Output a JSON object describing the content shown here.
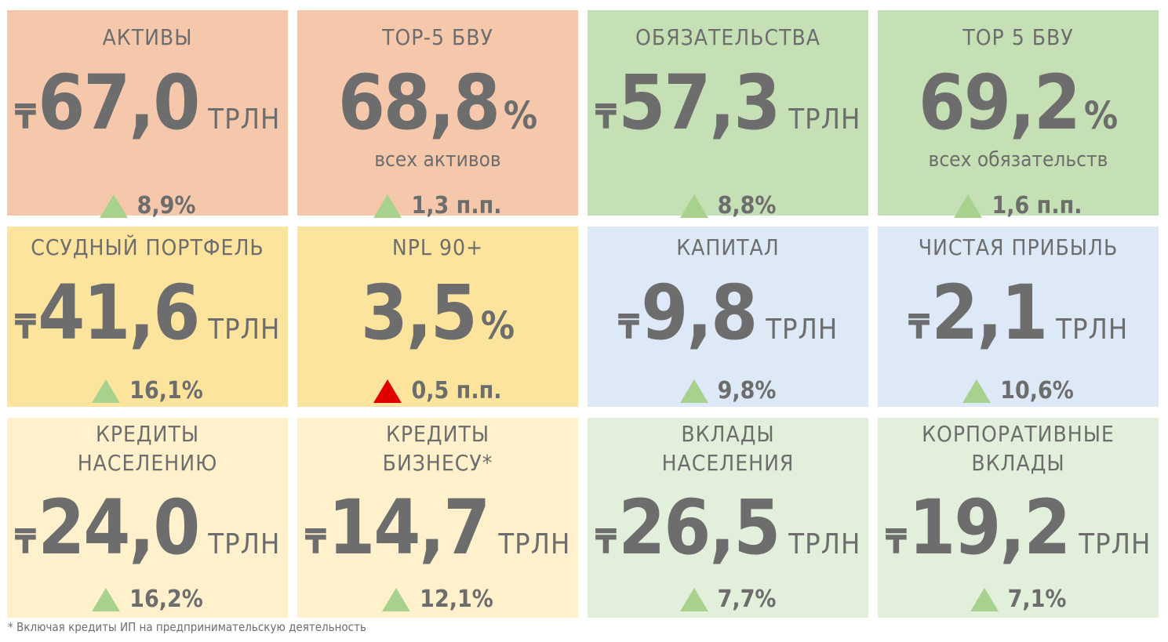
{
  "colors": {
    "salmon": "#f6c8ab",
    "green": "#c5e0b4",
    "yellow": "#fde49d",
    "blue": "#dde9f6",
    "light_yellow": "#fff1cc",
    "light_green": "#e2efda",
    "up_green": "#a9d18e",
    "up_red": "#e00000",
    "text": "#6d6d6d"
  },
  "currency_symbol": "₸",
  "tiles": [
    {
      "title": "АКТИВЫ",
      "value": "67,0",
      "unit": "ТРЛН",
      "change": "8,9%",
      "trend_icon": "triangle-up-green-icon"
    },
    {
      "title": "TOP-5 БВУ",
      "value": "68,8",
      "unit": "%",
      "subtitle": "всех активов",
      "change": "1,3 п.п.",
      "trend_icon": "triangle-up-green-icon"
    },
    {
      "title": "ОБЯЗАТЕЛЬСТВА",
      "value": "57,3",
      "unit": "ТРЛН",
      "change": "8,8%",
      "trend_icon": "triangle-up-green-icon"
    },
    {
      "title": "TOP 5 БВУ",
      "value": "69,2",
      "unit": "%",
      "subtitle": "всех обязательств",
      "change": "1,6 п.п.",
      "trend_icon": "triangle-up-green-icon"
    },
    {
      "title": "ССУДНЫЙ ПОРТФЕЛЬ",
      "value": "41,6",
      "unit": "ТРЛН",
      "change": "16,1%",
      "trend_icon": "triangle-up-green-icon"
    },
    {
      "title": "NPL 90+",
      "value": "3,5",
      "unit": "%",
      "change": "0,5 п.п.",
      "trend_icon": "triangle-up-red-icon"
    },
    {
      "title": "КАПИТАЛ",
      "value": "9,8",
      "unit": "ТРЛН",
      "change": "9,8%",
      "trend_icon": "triangle-up-green-icon"
    },
    {
      "title": "ЧИСТАЯ ПРИБЫЛЬ",
      "value": "2,1",
      "unit": "ТРЛН",
      "change": "10,6%",
      "trend_icon": "triangle-up-green-icon"
    },
    {
      "title": "КРЕДИТЫ",
      "title2": "НАСЕЛЕНИЮ",
      "value": "24,0",
      "unit": "ТРЛН",
      "change": "16,2%",
      "trend_icon": "triangle-up-green-icon"
    },
    {
      "title": "КРЕДИТЫ",
      "title2": "БИЗНЕСУ*",
      "value": "14,7",
      "unit": "ТРЛН",
      "change": "12,1%",
      "trend_icon": "triangle-up-green-icon"
    },
    {
      "title": "ВКЛАДЫ",
      "title2": "НАСЕЛЕНИЯ",
      "value": "26,5",
      "unit": "ТРЛН",
      "change": "7,7%",
      "trend_icon": "triangle-up-green-icon"
    },
    {
      "title": "КОРПОРАТИВНЫЕ",
      "title2": "ВКЛАДЫ",
      "value": "19,2",
      "unit": "ТРЛН",
      "change": "7,1%",
      "trend_icon": "triangle-up-green-icon"
    }
  ],
  "footnote": "* Включая кредиты ИП на предпринимательскую деятельность"
}
